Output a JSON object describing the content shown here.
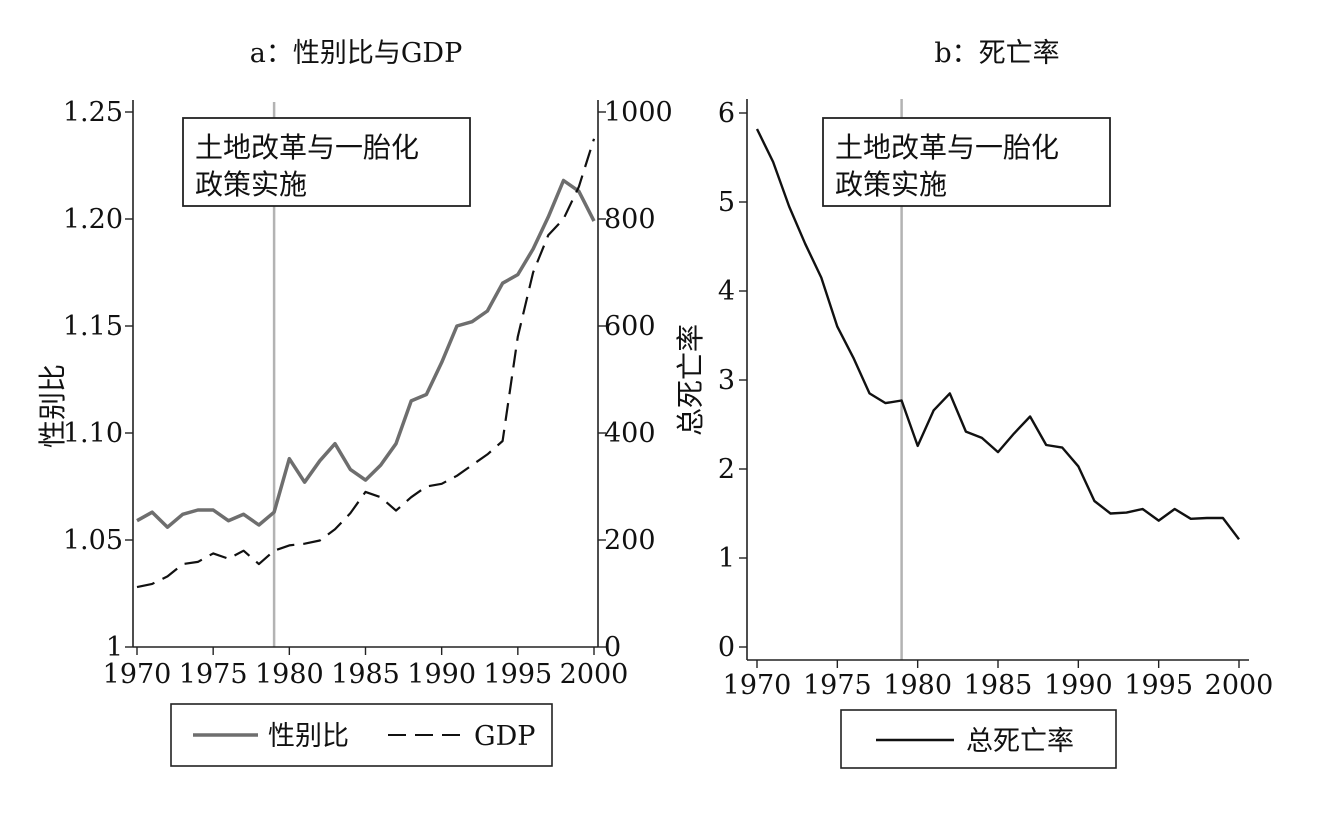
{
  "chart_data": [
    {
      "type": "line",
      "title": "a：性别比与GDP",
      "xlabel": "",
      "ylabel": "性别比",
      "y2label": "",
      "xlim": [
        1970,
        2000
      ],
      "ylim": [
        1,
        1.25
      ],
      "y2lim": [
        0,
        1000
      ],
      "xticks": [
        "1970",
        "1975",
        "1980",
        "1985",
        "1990",
        "1995",
        "2000"
      ],
      "yticks": [
        "1",
        "1.05",
        "1.10",
        "1.15",
        "1.20",
        "1.25"
      ],
      "y2ticks": [
        "0",
        "200",
        "400",
        "600",
        "800",
        "1000"
      ],
      "annotation": {
        "line1": "土地改革与一胎化",
        "line2": "政策实施"
      },
      "reference_line_x": 1979,
      "legend": [
        {
          "label": "性别比",
          "style": "solid",
          "color": "#6e6e6e"
        },
        {
          "label": "GDP",
          "style": "dashed",
          "color": "#111111"
        }
      ],
      "x": [
        1970,
        1971,
        1972,
        1973,
        1974,
        1975,
        1976,
        1977,
        1978,
        1979,
        1980,
        1981,
        1982,
        1983,
        1984,
        1985,
        1986,
        1987,
        1988,
        1989,
        1990,
        1991,
        1992,
        1993,
        1994,
        1995,
        1996,
        1997,
        1998,
        1999,
        2000
      ],
      "series": [
        {
          "name": "性别比",
          "axis": "left",
          "color": "#6e6e6e",
          "values": [
            1.059,
            1.063,
            1.056,
            1.062,
            1.064,
            1.064,
            1.059,
            1.062,
            1.057,
            1.063,
            1.088,
            1.077,
            1.087,
            1.095,
            1.083,
            1.078,
            1.085,
            1.095,
            1.115,
            1.118,
            1.133,
            1.15,
            1.152,
            1.157,
            1.17,
            1.174,
            1.186,
            1.201,
            1.218,
            1.213,
            1.199
          ]
        },
        {
          "name": "GDP",
          "axis": "right",
          "color": "#111111",
          "values": [
            112,
            118,
            132,
            155,
            159,
            175,
            165,
            180,
            155,
            180,
            190,
            193,
            199,
            220,
            250,
            290,
            280,
            255,
            280,
            300,
            305,
            320,
            340,
            360,
            385,
            580,
            700,
            770,
            800,
            860,
            950
          ]
        }
      ]
    },
    {
      "type": "line",
      "title": "b：死亡率",
      "xlabel": "",
      "ylabel": "总死亡率",
      "xlim": [
        1970,
        2000
      ],
      "ylim": [
        0,
        6
      ],
      "xticks": [
        "1970",
        "1975",
        "1980",
        "1985",
        "1990",
        "1995",
        "2000"
      ],
      "yticks": [
        "0",
        "1",
        "2",
        "3",
        "4",
        "5",
        "6"
      ],
      "annotation": {
        "line1": "土地改革与一胎化",
        "line2": "政策实施"
      },
      "reference_line_x": 1979,
      "legend": [
        {
          "label": "总死亡率",
          "style": "solid",
          "color": "#111111"
        }
      ],
      "x": [
        1970,
        1971,
        1972,
        1973,
        1974,
        1975,
        1976,
        1977,
        1978,
        1979,
        1980,
        1981,
        1982,
        1983,
        1984,
        1985,
        1986,
        1987,
        1988,
        1989,
        1990,
        1991,
        1992,
        1993,
        1994,
        1995,
        1996,
        1997,
        1998,
        1999,
        2000
      ],
      "series": [
        {
          "name": "总死亡率",
          "axis": "left",
          "color": "#111111",
          "values": [
            5.82,
            5.45,
            4.95,
            4.53,
            4.15,
            3.6,
            3.25,
            2.85,
            2.74,
            2.77,
            2.26,
            2.66,
            2.85,
            2.42,
            2.35,
            2.19,
            2.4,
            2.59,
            2.27,
            2.24,
            2.03,
            1.64,
            1.5,
            1.51,
            1.55,
            1.42,
            1.55,
            1.44,
            1.45,
            1.45,
            1.21
          ]
        }
      ]
    }
  ]
}
